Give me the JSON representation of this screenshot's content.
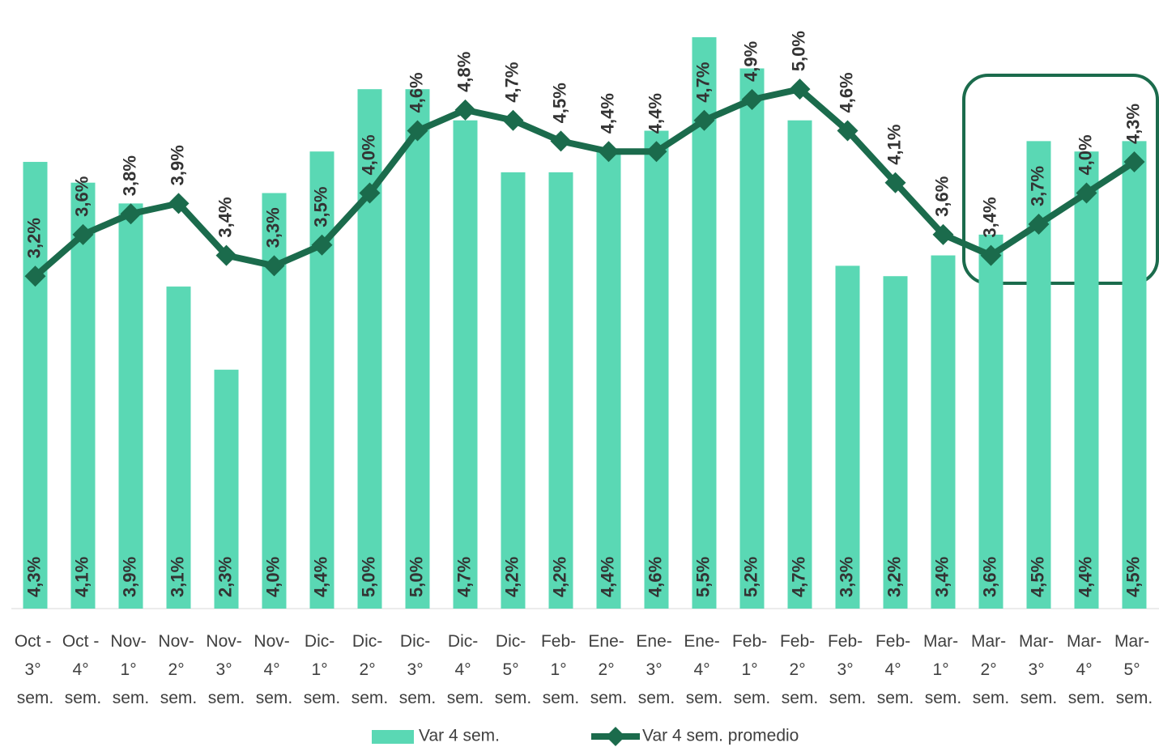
{
  "chart_data": {
    "type": "bar-line",
    "categories": [
      "Oct - 3° sem.",
      "Oct - 4° sem.",
      "Nov- 1° sem.",
      "Nov- 2° sem.",
      "Nov- 3° sem.",
      "Nov- 4° sem.",
      "Dic- 1° sem.",
      "Dic- 2° sem.",
      "Dic- 3° sem.",
      "Dic- 4° sem.",
      "Dic- 5° sem.",
      "Feb- 1° sem.",
      "Ene- 2° sem.",
      "Ene- 3° sem.",
      "Ene- 4° sem.",
      "Feb- 1° sem.",
      "Feb- 2° sem.",
      "Feb- 3° sem.",
      "Feb- 4° sem.",
      "Mar- 1° sem.",
      "Mar- 2° sem.",
      "Mar- 3° sem.",
      "Mar- 4° sem.",
      "Mar- 5° sem."
    ],
    "series": [
      {
        "name": "Var 4 sem.",
        "type": "bar",
        "color": "#5ad8b4",
        "values": [
          4.3,
          4.1,
          3.9,
          3.1,
          2.3,
          4.0,
          4.4,
          5.0,
          5.0,
          4.7,
          4.2,
          4.2,
          4.4,
          4.6,
          5.5,
          5.2,
          4.7,
          3.3,
          3.2,
          3.4,
          3.6,
          4.5,
          4.4,
          4.5
        ],
        "value_labels": [
          "4,3%",
          "4,1%",
          "3,9%",
          "3,1%",
          "2,3%",
          "4,0%",
          "4,4%",
          "5,0%",
          "5,0%",
          "4,7%",
          "4,2%",
          "4,2%",
          "4,4%",
          "4,6%",
          "5,5%",
          "5,2%",
          "4,7%",
          "3,3%",
          "3,2%",
          "3,4%",
          "3,6%",
          "4,5%",
          "4,4%",
          "4,5%"
        ]
      },
      {
        "name": "Var 4 sem. promedio",
        "type": "line",
        "color": "#1b6b4c",
        "values": [
          3.2,
          3.6,
          3.8,
          3.9,
          3.4,
          3.3,
          3.5,
          4.0,
          4.6,
          4.8,
          4.7,
          4.5,
          4.4,
          4.4,
          4.7,
          4.9,
          5.0,
          4.6,
          4.1,
          3.6,
          3.4,
          3.7,
          4.0,
          4.3
        ],
        "value_labels": [
          "3,2%",
          "3,6%",
          "3,8%",
          "3,9%",
          "3,4%",
          "3,3%",
          "3,5%",
          "4,0%",
          "4,6%",
          "4,8%",
          "4,7%",
          "4,5%",
          "4,4%",
          "4,4%",
          "4,7%",
          "4,9%",
          "5,0%",
          "4,6%",
          "4,1%",
          "3,6%",
          "3,4%",
          "3,7%",
          "4,0%",
          "4,3%"
        ]
      }
    ],
    "ylim": [
      0,
      5.5
    ],
    "legend": "bottom"
  }
}
